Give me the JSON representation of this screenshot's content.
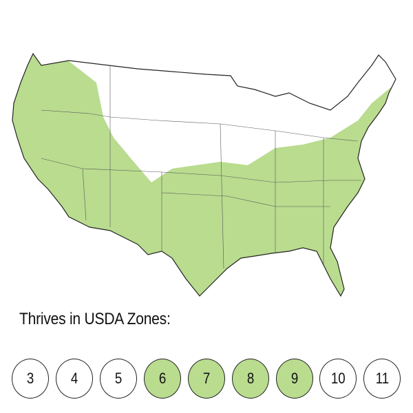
{
  "map": {
    "subject": "Continental United States",
    "colors": {
      "thrives": "#b9dc8f",
      "other": "#ffffff",
      "borders": "#333333"
    }
  },
  "legend": {
    "title": "Thrives in USDA Zones:",
    "zones": [
      {
        "label": "3",
        "active": false
      },
      {
        "label": "4",
        "active": false
      },
      {
        "label": "5",
        "active": false
      },
      {
        "label": "6",
        "active": true
      },
      {
        "label": "7",
        "active": true
      },
      {
        "label": "8",
        "active": true
      },
      {
        "label": "9",
        "active": true
      },
      {
        "label": "10",
        "active": false
      },
      {
        "label": "11",
        "active": false
      }
    ]
  }
}
